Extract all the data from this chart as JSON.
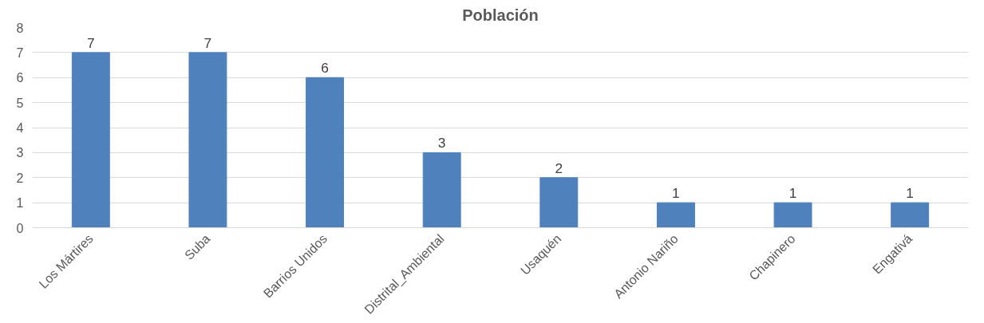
{
  "chart_data": {
    "type": "bar",
    "title": "Población",
    "categories": [
      "Los Mártires",
      "Suba",
      "Barrios Unidos",
      "Distrital_Ambiental",
      "Usaquén",
      "Antonio Nariño",
      "Chapinero",
      "Engativá"
    ],
    "values": [
      7,
      7,
      6,
      3,
      2,
      1,
      1,
      1
    ],
    "color": "#4f81bd",
    "ylim": [
      0,
      8
    ],
    "yticks": [
      0,
      1,
      2,
      3,
      4,
      5,
      6,
      7,
      8
    ],
    "grid": "y",
    "data_labels": true
  }
}
